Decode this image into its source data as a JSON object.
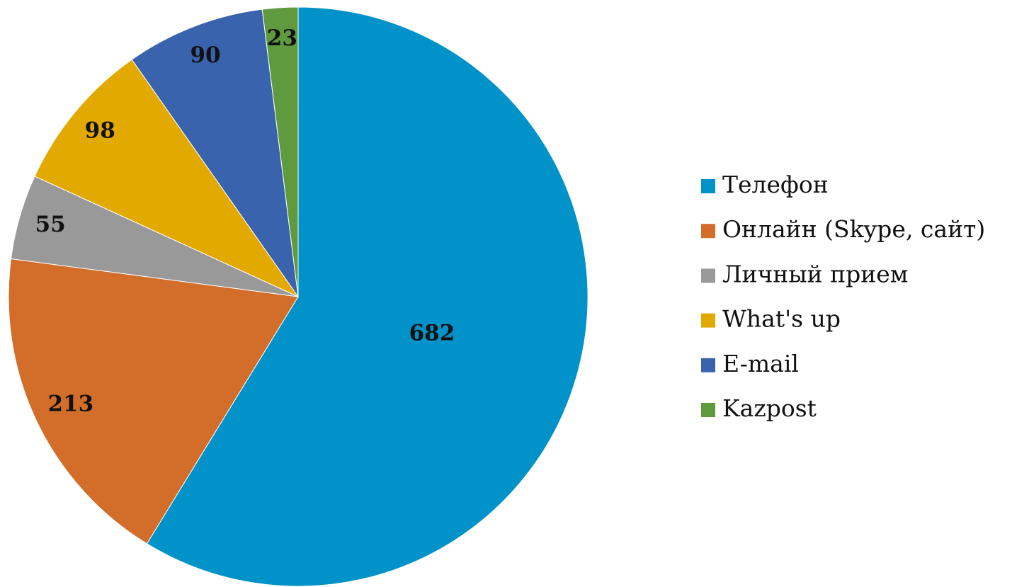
{
  "chart_data": {
    "type": "pie",
    "categories": [
      "Телефон",
      "Онлайн  (Skype, сайт)",
      "Личный прием",
      "What's up",
      "E-mail",
      "Kazpost"
    ],
    "values": [
      682,
      213,
      55,
      98,
      90,
      23
    ],
    "colors": [
      "#0092c8",
      "#d36d2a",
      "#999999",
      "#e2aa00",
      "#3a63ad",
      "#5f9a3e"
    ],
    "legend": "right"
  }
}
